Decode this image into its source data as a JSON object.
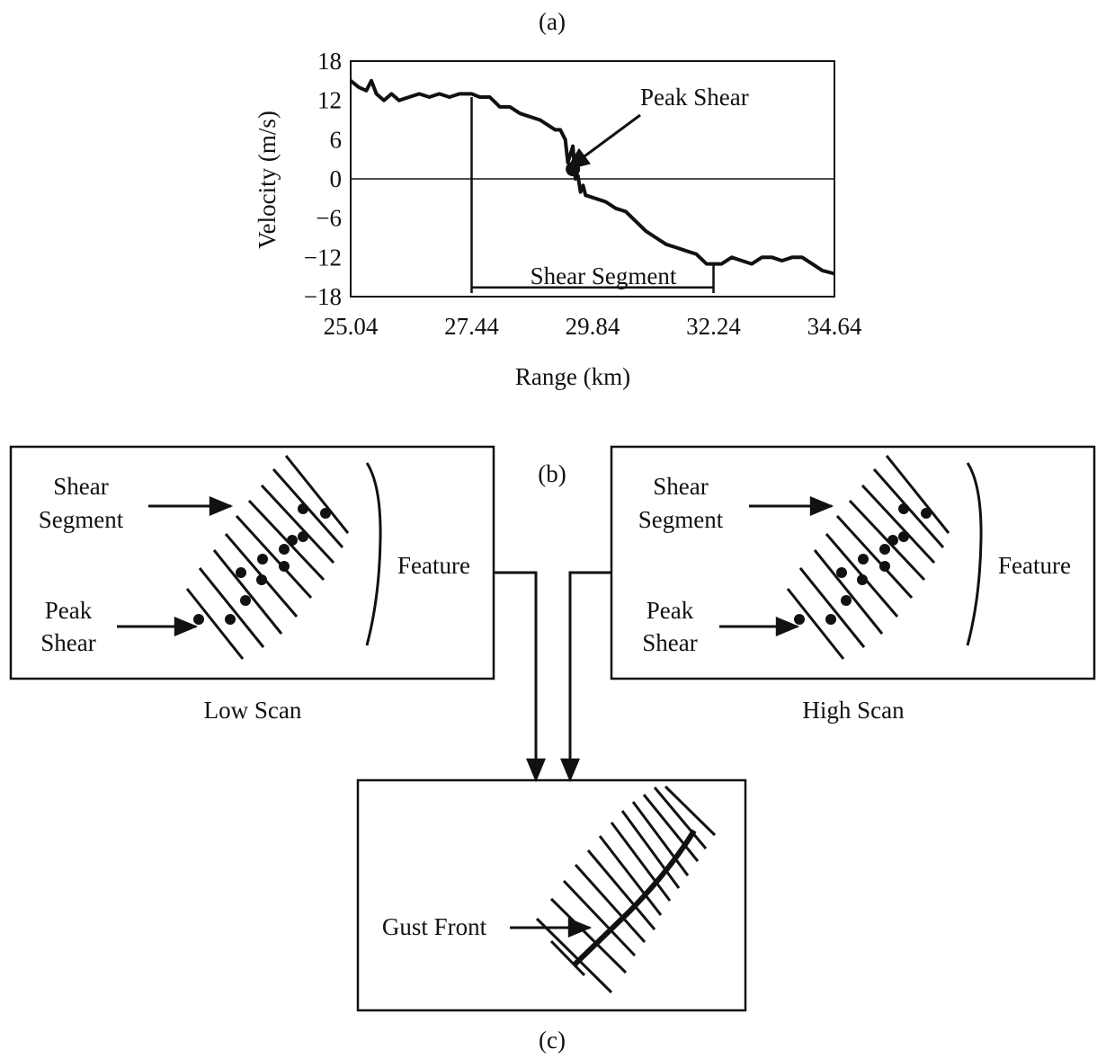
{
  "panel_labels": {
    "a": "(a)",
    "b": "(b)",
    "c": "(c)"
  },
  "chart_data": {
    "type": "line",
    "xlabel": "Range (km)",
    "ylabel": "Velocity (m/s)",
    "xlim": [
      25.04,
      34.64
    ],
    "ylim": [
      -18,
      18
    ],
    "x_ticks": [
      "25.04",
      "27.44",
      "29.84",
      "32.24",
      "34.64"
    ],
    "y_ticks": [
      "18",
      "12",
      "6",
      "0",
      "−6",
      "−12",
      "−18"
    ],
    "series": [
      {
        "x": [
          25.04,
          25.2,
          25.35,
          25.45,
          25.55,
          25.7,
          25.85,
          26.0,
          26.2,
          26.4,
          26.6,
          26.8,
          27.0,
          27.2,
          27.44,
          27.6,
          27.8,
          28.0,
          28.2,
          28.4,
          28.6,
          28.8,
          29.0,
          29.1,
          29.2,
          29.3,
          29.35,
          29.45,
          29.5,
          29.55,
          29.6,
          29.65,
          29.7,
          29.9,
          30.1,
          30.3,
          30.5,
          30.7,
          30.9,
          31.1,
          31.3,
          31.5,
          31.7,
          31.9,
          32.1,
          32.24,
          32.4,
          32.6,
          32.8,
          33.0,
          33.2,
          33.4,
          33.6,
          33.8,
          34.0,
          34.2,
          34.4,
          34.64
        ],
        "y": [
          15,
          14,
          13.5,
          15,
          13,
          12,
          13,
          12,
          12.5,
          13,
          12.5,
          13,
          12.5,
          13,
          13,
          12.5,
          12.5,
          11,
          11,
          10,
          9.5,
          9,
          8,
          7.5,
          7.5,
          6,
          2.5,
          5,
          0,
          0.5,
          -2,
          -1,
          -2.5,
          -3,
          -3.5,
          -4.5,
          -5,
          -6.5,
          -8,
          -9,
          -10,
          -10.5,
          -11,
          -11.5,
          -13,
          -13,
          -13,
          -12,
          -12.5,
          -13,
          -12,
          -12,
          -12.5,
          -12,
          -12,
          -13,
          -14,
          -14.5
        ]
      }
    ],
    "annotations": {
      "peak_shear": {
        "label": "Peak Shear",
        "x": 29.45,
        "y": 1.5
      },
      "shear_segment": {
        "label": "Shear Segment",
        "x_start": 27.44,
        "x_end": 32.24
      }
    }
  },
  "diagram": {
    "low_scan": {
      "caption": "Low Scan",
      "shear_segment_label": [
        "Shear",
        "Segment"
      ],
      "peak_shear_label": [
        "Peak",
        "Shear"
      ],
      "feature_label": "Feature"
    },
    "high_scan": {
      "caption": "High Scan",
      "shear_segment_label": [
        "Shear",
        "Segment"
      ],
      "peak_shear_label": [
        "Peak",
        "Shear"
      ],
      "feature_label": "Feature"
    },
    "combined": {
      "gust_front_label": "Gust Front"
    }
  }
}
